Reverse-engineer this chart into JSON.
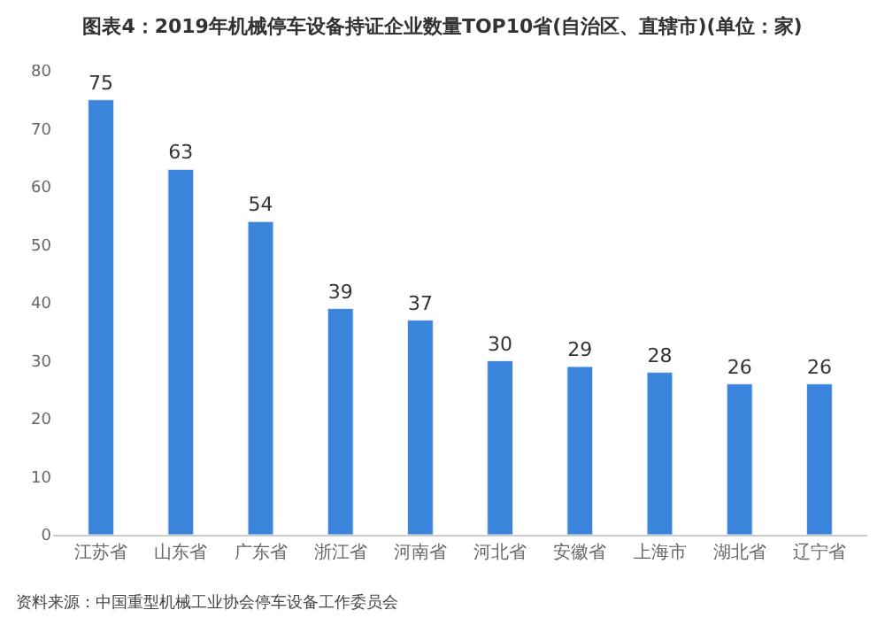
{
  "chart_data": {
    "type": "bar",
    "title": "图表4：2019年机械停车设备持证企业数量TOP10省(自治区、直辖市)(单位：家)",
    "categories": [
      "江苏省",
      "山东省",
      "广东省",
      "浙江省",
      "河南省",
      "河北省",
      "安徽省",
      "上海市",
      "湖北省",
      "辽宁省"
    ],
    "values": [
      75,
      63,
      54,
      39,
      37,
      30,
      29,
      28,
      26,
      26
    ],
    "color": "#3a84dc",
    "ylim": [
      0,
      80
    ],
    "yticks": [
      0,
      10,
      20,
      30,
      40,
      50,
      60,
      70,
      80
    ],
    "data_labels": true,
    "annotations": [
      "资料来源：中国重型机械工业协会停车设备工作委员会"
    ]
  }
}
